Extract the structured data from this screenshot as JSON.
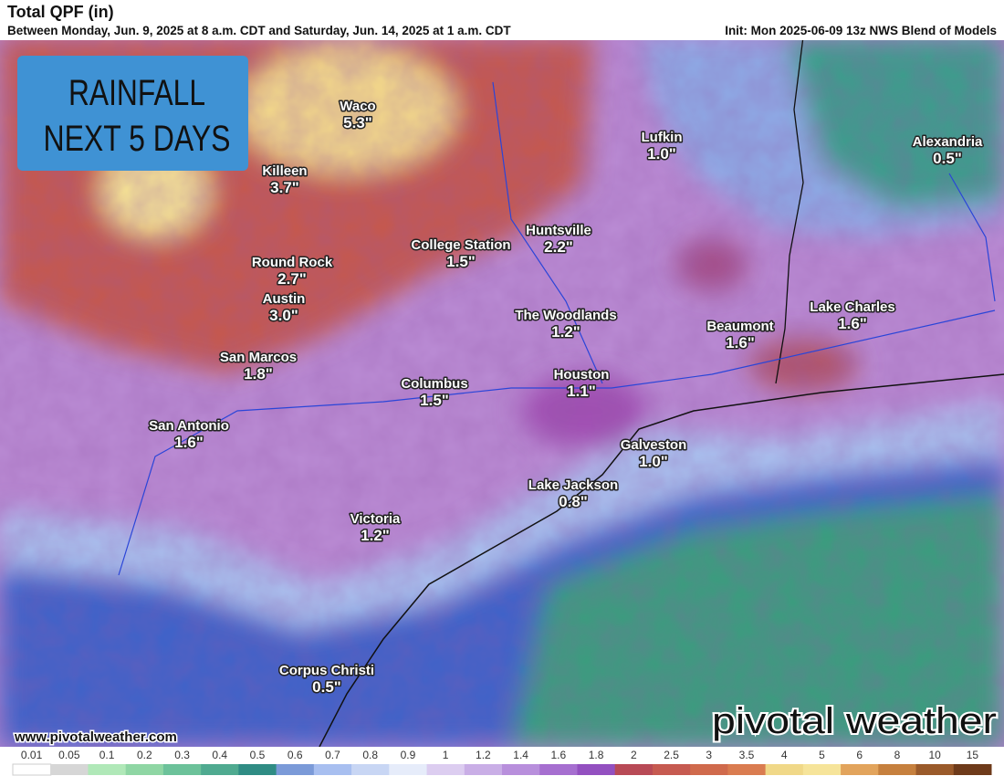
{
  "header": {
    "title": "Total QPF (in)",
    "subtitle": "Between Monday, Jun. 9, 2025 at 8 a.m. CDT and Saturday, Jun. 14, 2025 at 1 a.m. CDT",
    "init": "Init: Mon 2025-06-09 13z NWS Blend of Models"
  },
  "badge": {
    "lines": [
      "RAINFALL",
      "NEXT 5 DAYS"
    ]
  },
  "cities": [
    {
      "name": "Waco",
      "amount": "5.3\""
    },
    {
      "name": "Killeen",
      "amount": "3.7\""
    },
    {
      "name": "Round Rock",
      "amount": "2.7\""
    },
    {
      "name": "Austin",
      "amount": "3.0\""
    },
    {
      "name": "San Marcos",
      "amount": "1.8\""
    },
    {
      "name": "San Antonio",
      "amount": "1.6\""
    },
    {
      "name": "College Station",
      "amount": "1.5\""
    },
    {
      "name": "Huntsville",
      "amount": "2.2\""
    },
    {
      "name": "The Woodlands",
      "amount": "1.2\""
    },
    {
      "name": "Houston",
      "amount": "1.1\""
    },
    {
      "name": "Columbus",
      "amount": "1.5\""
    },
    {
      "name": "Galveston",
      "amount": "1.0\""
    },
    {
      "name": "Lake Jackson",
      "amount": "0.8\""
    },
    {
      "name": "Victoria",
      "amount": "1.2\""
    },
    {
      "name": "Corpus Christi",
      "amount": "0.5\""
    },
    {
      "name": "Beaumont",
      "amount": "1.6\""
    },
    {
      "name": "Lake Charles",
      "amount": "1.6\""
    },
    {
      "name": "Lufkin",
      "amount": "1.0\""
    },
    {
      "name": "Alexandria",
      "amount": "0.5\""
    }
  ],
  "footer": {
    "website": "www.pivotalweather.com",
    "logo": "pivotal weather"
  },
  "colorbar": {
    "labels": [
      "0.01",
      "0.05",
      "0.1",
      "0.2",
      "0.3",
      "0.4",
      "0.5",
      "0.6",
      "0.7",
      "0.8",
      "0.9",
      "1",
      "1.2",
      "1.4",
      "1.6",
      "1.8",
      "2",
      "2.5",
      "3",
      "3.5",
      "4",
      "5",
      "6",
      "8",
      "10",
      "15"
    ],
    "colors": [
      "#ffffff",
      "#d6d6d6",
      "#b0e8b8",
      "#8fd6a4",
      "#6cc29a",
      "#4faa90",
      "#2f8c84",
      "#7b9ad8",
      "#a8bff0",
      "#c8d6f4",
      "#e6ecfa",
      "#dccdf0",
      "#c9aee6",
      "#b88fdc",
      "#a66fd0",
      "#9350c0",
      "#b84a56",
      "#c65a50",
      "#d06a4c",
      "#da7c50",
      "#f0d888",
      "#f6e49a",
      "#e2a45c",
      "#c6803e",
      "#9a5a2a",
      "#6e3a1a"
    ]
  }
}
